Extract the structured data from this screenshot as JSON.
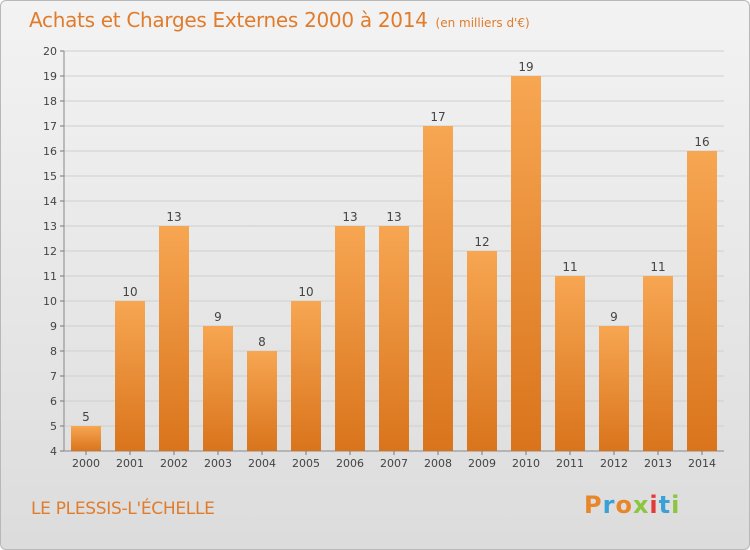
{
  "chart_data": {
    "type": "bar",
    "title": "Achats et Charges Externes 2000 à 2014",
    "subtitle": "(en milliers d'€)",
    "categories": [
      "2000",
      "2001",
      "2002",
      "2003",
      "2004",
      "2005",
      "2006",
      "2007",
      "2008",
      "2009",
      "2010",
      "2011",
      "2012",
      "2013",
      "2014"
    ],
    "values": [
      5,
      10,
      13,
      9,
      8,
      10,
      13,
      13,
      17,
      12,
      19,
      11,
      9,
      11,
      16
    ],
    "xlabel": "",
    "ylabel": "",
    "ylim": [
      4,
      20
    ],
    "yticks": [
      4,
      5,
      6,
      7,
      8,
      9,
      10,
      11,
      12,
      13,
      14,
      15,
      16,
      17,
      18,
      19,
      20
    ],
    "grid": true,
    "bar_color": "#f0953a"
  },
  "footer": {
    "city": "LE PLESSIS-L'ÉCHELLE",
    "logo": "Proxiti"
  },
  "colors": {
    "title": "#e07c2c",
    "logo_letters": [
      "#e8862a",
      "#3aa0d8",
      "#e8862a",
      "#8cc63f",
      "#e23b3b",
      "#3aa0d8",
      "#8cc63f"
    ]
  }
}
